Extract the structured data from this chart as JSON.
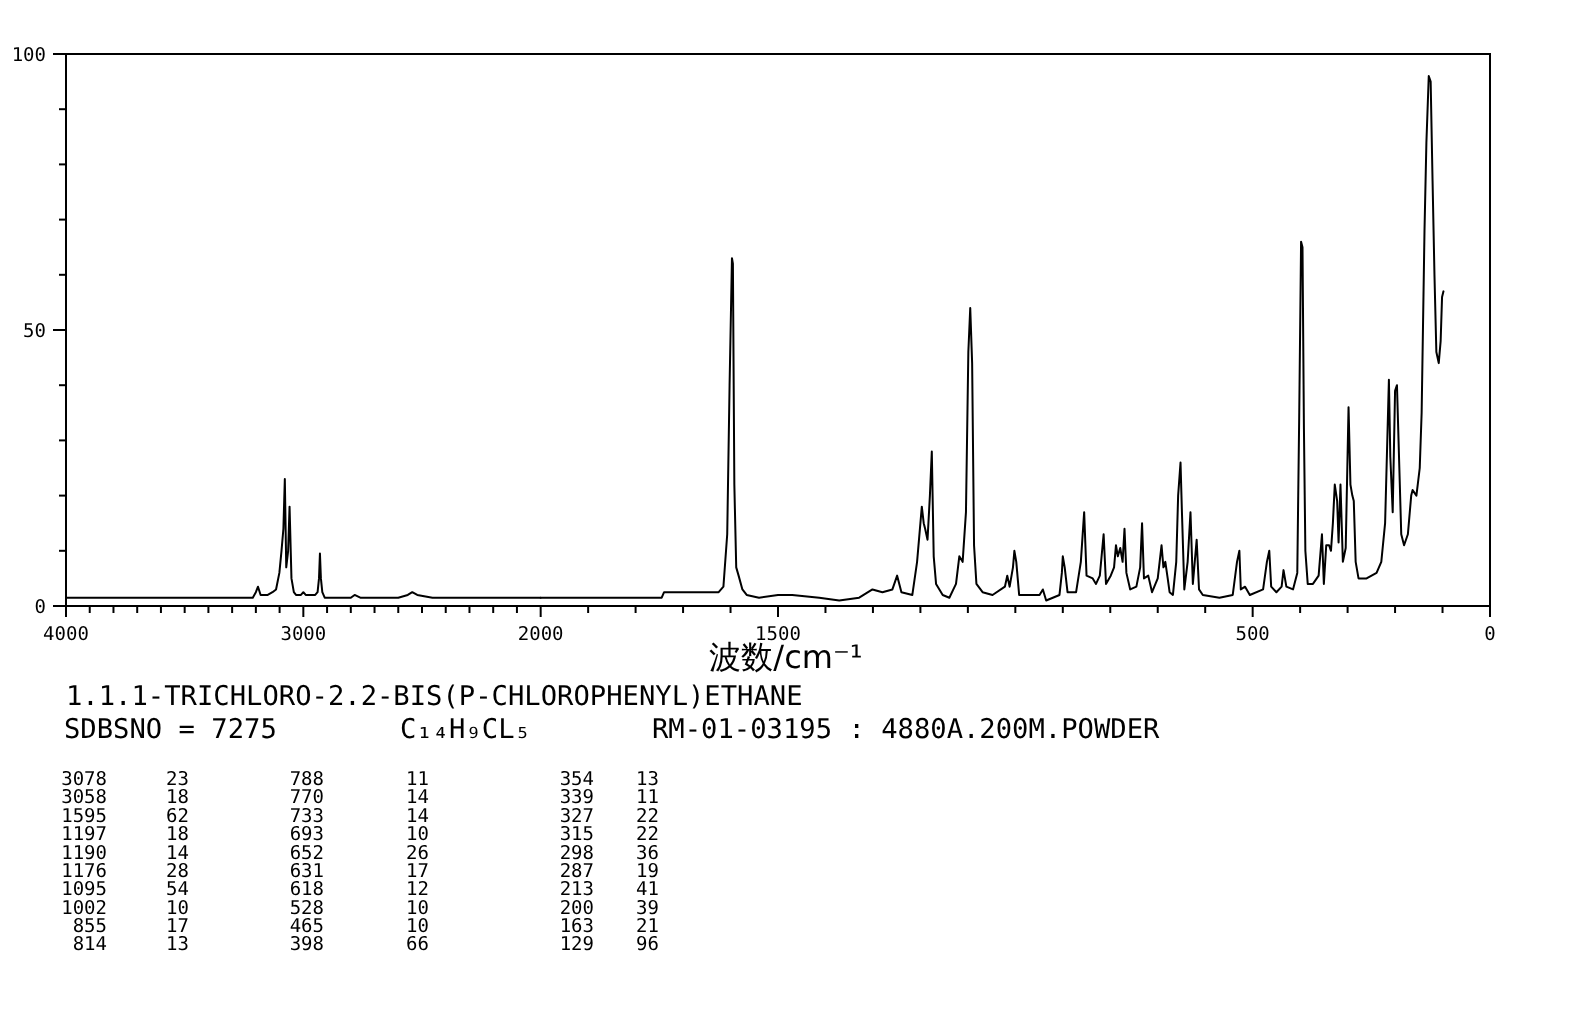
{
  "chart_data": [
    {
      "type": "line",
      "color": "#000000",
      "x": [
        4000,
        3900,
        3800,
        3700,
        3600,
        3500,
        3400,
        3300,
        3213,
        3200,
        3191,
        3180,
        3171,
        3150,
        3130,
        3115,
        3101,
        3092,
        3084,
        3078,
        3072,
        3064,
        3058,
        3050,
        3040,
        3031,
        3010,
        3000,
        2990,
        2950,
        2940,
        2934,
        2930,
        2926,
        2920,
        2910,
        2800,
        2784,
        2760,
        2600,
        2560,
        2541,
        2520,
        2456,
        2300,
        2150,
        2000
      ],
      "values": [
        1.5,
        1.5,
        1.5,
        1.5,
        1.5,
        1.5,
        1.5,
        1.5,
        1.5,
        2.5,
        3.5,
        2,
        2,
        2,
        2.5,
        3,
        6,
        10,
        14,
        23,
        7,
        10,
        18,
        5,
        2.5,
        2,
        2,
        2.5,
        2,
        2,
        2.5,
        5,
        9.5,
        5,
        2.5,
        1.5,
        1.5,
        2,
        1.5,
        1.5,
        2,
        2.5,
        2,
        1.5,
        1.5,
        1.5,
        1.5
      ],
      "xlim": [
        4000,
        2000
      ],
      "xticks": [
        4000,
        {
          "value": 3900,
          "label": null
        },
        {
          "value": 3800,
          "label": null
        },
        {
          "value": 3700,
          "label": null
        },
        {
          "value": 3600,
          "label": null
        },
        {
          "value": 3500,
          "label": null
        },
        {
          "value": 3400,
          "label": null
        },
        {
          "value": 3300,
          "label": null
        },
        {
          "value": 3200,
          "label": null
        },
        {
          "value": 3100,
          "label": null
        },
        3000,
        {
          "value": 2900,
          "label": null
        },
        {
          "value": 2800,
          "label": null
        },
        {
          "value": 2700,
          "label": null
        },
        {
          "value": 2600,
          "label": null
        },
        {
          "value": 2500,
          "label": null
        },
        {
          "value": 2400,
          "label": null
        },
        {
          "value": 2300,
          "label": null
        },
        {
          "value": 2200,
          "label": null
        },
        {
          "value": 2100,
          "label": null
        }
      ],
      "ylim": [
        0,
        100
      ],
      "yticks": [
        0,
        {
          "value": 10,
          "label": null
        },
        {
          "value": 20,
          "label": null
        },
        {
          "value": 30,
          "label": null
        },
        {
          "value": 40,
          "label": null
        },
        50,
        {
          "value": 60,
          "label": null
        },
        {
          "value": 70,
          "label": null
        },
        {
          "value": 80,
          "label": null
        },
        {
          "value": 90,
          "label": null
        },
        100
      ]
    },
    {
      "type": "line",
      "color": "#000000",
      "xlabel": "波数/cm⁻¹",
      "x": [
        2000,
        1800,
        1745,
        1740,
        1690,
        1650,
        1625,
        1615,
        1607,
        1602,
        1597,
        1595,
        1592,
        1588,
        1583,
        1575,
        1566,
        1540,
        1500,
        1470,
        1413,
        1371,
        1329,
        1301,
        1280,
        1259,
        1249,
        1240,
        1217,
        1207,
        1197,
        1193,
        1190,
        1185,
        1180,
        1176,
        1172,
        1167,
        1153,
        1139,
        1125,
        1118,
        1111,
        1104,
        1099,
        1095,
        1091,
        1087,
        1082,
        1069,
        1048,
        1022,
        1017,
        1012,
        1005,
        1002,
        998,
        992,
        949,
        942,
        935,
        907,
        902,
        900,
        896,
        890,
        872,
        862,
        855,
        850,
        837,
        830,
        822,
        814,
        809,
        799,
        792,
        788,
        784,
        779,
        774,
        770,
        766,
        758,
        745,
        737,
        733,
        729,
        720,
        712,
        700,
        696,
        692,
        688,
        684,
        679,
        675,
        668,
        661,
        657,
        652,
        649,
        644,
        637,
        631,
        626,
        618,
        613,
        605,
        570,
        542,
        533,
        528,
        525,
        516,
        506,
        478,
        470,
        465,
        461,
        450,
        439,
        435,
        429,
        415,
        406,
        402,
        398,
        395,
        392,
        389,
        384,
        373,
        361,
        354,
        350,
        345,
        339,
        335,
        331,
        327,
        322,
        319,
        315,
        310,
        304,
        298,
        294,
        290,
        287,
        283,
        277,
        260,
        239,
        229,
        221,
        213,
        210,
        205,
        200,
        196,
        191,
        187,
        181,
        173,
        166,
        163,
        155,
        148,
        144,
        138,
        134,
        129,
        125,
        121,
        117,
        113,
        108,
        104,
        101,
        98
      ],
      "values": [
        1.5,
        1.5,
        1.5,
        2.5,
        2.5,
        2.5,
        2.5,
        3.5,
        13,
        40,
        63,
        62,
        22,
        7,
        5.5,
        3,
        2,
        1.5,
        2,
        2,
        1.5,
        1,
        1.5,
        3,
        2.5,
        3,
        5.5,
        2.5,
        2,
        8,
        18,
        15,
        14,
        12,
        20,
        28,
        9,
        4,
        2,
        1.5,
        4,
        9,
        8,
        17,
        46,
        54,
        44,
        11,
        4,
        2.5,
        2,
        3.5,
        5.5,
        3.5,
        7,
        10,
        8,
        2,
        2,
        3,
        1,
        2,
        6,
        9,
        7,
        2.5,
        2.5,
        8,
        17,
        5.5,
        5,
        4,
        5.5,
        13,
        4,
        5.5,
        7,
        11,
        9,
        10.5,
        8,
        14,
        6,
        3,
        3.5,
        7,
        15,
        5,
        5.5,
        2.5,
        5,
        8,
        11,
        7,
        8,
        5,
        2.5,
        2,
        8,
        20,
        26,
        17,
        3,
        8,
        17,
        4,
        12,
        3,
        2,
        1.5,
        2,
        8,
        10,
        3,
        3.5,
        2,
        3,
        8,
        10,
        3.5,
        2.5,
        3.5,
        6.5,
        3.5,
        3,
        6,
        34,
        66,
        65,
        32,
        10,
        4,
        4,
        5.5,
        13,
        4,
        11,
        11,
        10,
        15,
        22,
        19,
        11.5,
        22,
        8,
        10.5,
        36,
        22,
        20,
        19,
        8,
        5,
        5,
        6,
        8,
        15,
        41,
        27,
        17,
        39,
        40,
        25,
        13,
        11,
        13,
        20,
        21,
        20,
        25,
        35,
        68,
        84,
        96,
        95,
        77,
        60,
        46,
        44,
        48,
        56,
        57
      ],
      "xlim": [
        2000,
        0
      ],
      "xticks": [
        2000,
        {
          "value": 1900,
          "label": null
        },
        {
          "value": 1800,
          "label": null
        },
        {
          "value": 1700,
          "label": null
        },
        {
          "value": 1600,
          "label": null
        },
        1500,
        {
          "value": 1400,
          "label": null
        },
        {
          "value": 1300,
          "label": null
        },
        {
          "value": 1200,
          "label": null
        },
        {
          "value": 1100,
          "label": null
        },
        {
          "value": 1000,
          "label": null
        },
        {
          "value": 900,
          "label": null
        },
        {
          "value": 800,
          "label": null
        },
        {
          "value": 700,
          "label": null
        },
        {
          "value": 600,
          "label": null
        },
        500,
        {
          "value": 400,
          "label": null
        },
        {
          "value": 300,
          "label": null
        },
        {
          "value": 200,
          "label": null
        },
        {
          "value": 100,
          "label": null
        },
        0
      ],
      "ylim": [
        0,
        100
      ],
      "tick_labels": "x"
    },
    {
      "type": "other",
      "annotations": [
        "1.1.1-TRICHLORO-2.2-BIS(P-CHLOROPHENYL)ETHANE",
        "SDBSNO = 7275",
        "C₁₄H₉CL₅",
        "RM-01-03195 : 4880A.200M.POWDER",
        "3078 23",
        "3058 18",
        "1595 62",
        "1197 18",
        "1190 14",
        "1176 28",
        "1095 54",
        "1002 10",
        "855 17",
        "814 13",
        "788 11",
        "770 14",
        "733 14",
        "693 10",
        "652 26",
        "631 17",
        "618 12",
        "528 10",
        "465 10",
        "398 66",
        "354 13",
        "339 11",
        "327 22",
        "315 22",
        "298 36",
        "287 19",
        "213 41",
        "200 39",
        "163 21",
        "129 96"
      ]
    }
  ]
}
